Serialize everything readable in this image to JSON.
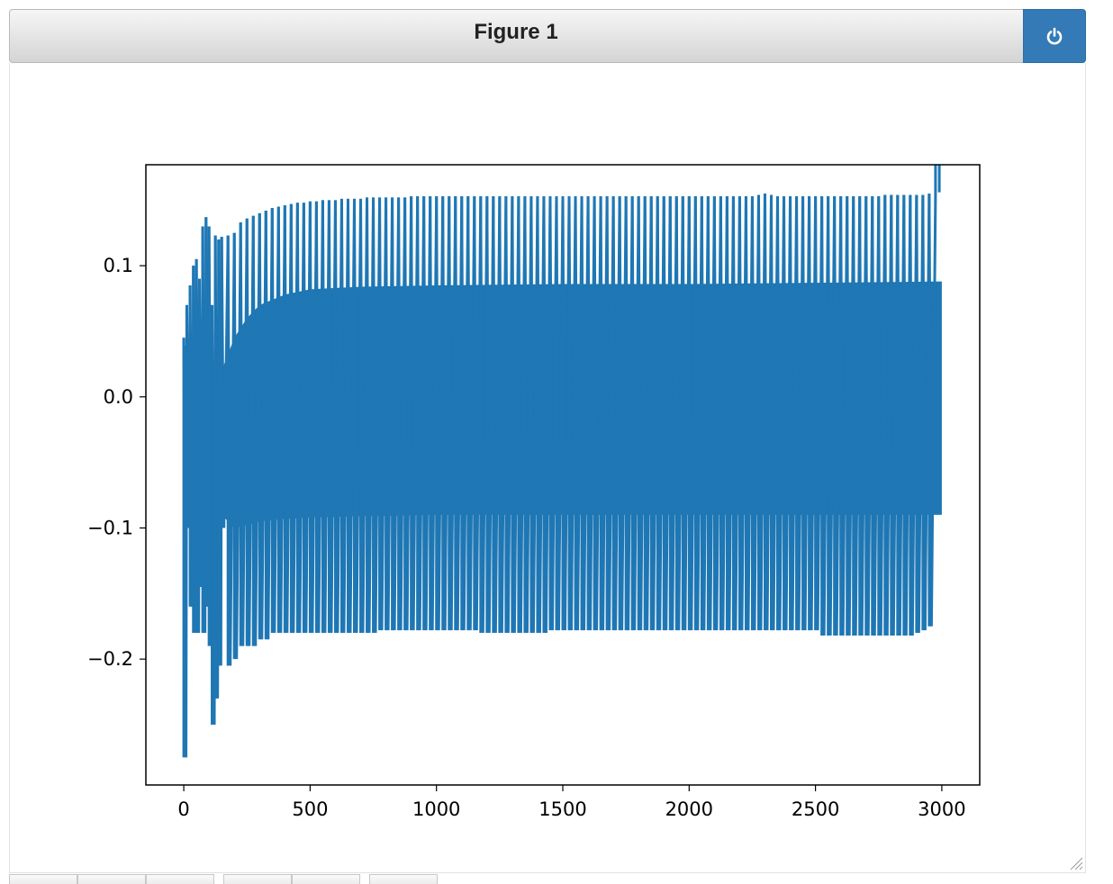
{
  "window": {
    "title": "Figure 1"
  },
  "toolbar": {
    "groups": [
      3,
      2,
      1
    ]
  },
  "colors": {
    "line": "#1f77b4",
    "power_button": "#337ab7"
  },
  "chart_data": {
    "type": "line",
    "title": "",
    "xlabel": "",
    "ylabel": "",
    "xlim": [
      -150,
      3150
    ],
    "ylim": [
      -0.296,
      0.177
    ],
    "xticks": [
      0,
      500,
      1000,
      1500,
      2000,
      2500,
      3000
    ],
    "xtick_labels": [
      "0",
      "500",
      "1000",
      "1500",
      "2000",
      "2500",
      "3000"
    ],
    "yticks": [
      -0.2,
      -0.1,
      0.0,
      0.1
    ],
    "ytick_labels": [
      "−0.2",
      "−0.1",
      "0.0",
      "0.1"
    ],
    "grid": false,
    "series": [
      {
        "description": "dense oscillating signal, 3000 samples",
        "spike_x": [
          0,
          12,
          25,
          38,
          50,
          62,
          75,
          88,
          100,
          112,
          125,
          138,
          150,
          175,
          200,
          225,
          250,
          275,
          300,
          325,
          350,
          375,
          400,
          425,
          450,
          475,
          500,
          525,
          550,
          575,
          600,
          625,
          650,
          675,
          700,
          725,
          750,
          775,
          800,
          825,
          850,
          875,
          900,
          925,
          950,
          975,
          1000,
          1025,
          1050,
          1075,
          1100,
          1125,
          1150,
          1175,
          1200,
          1225,
          1250,
          1275,
          1300,
          1325,
          1350,
          1375,
          1400,
          1425,
          1450,
          1475,
          1500,
          1525,
          1550,
          1575,
          1600,
          1625,
          1650,
          1675,
          1700,
          1725,
          1750,
          1775,
          1800,
          1825,
          1850,
          1875,
          1900,
          1925,
          1950,
          1975,
          2000,
          2025,
          2050,
          2075,
          2100,
          2125,
          2150,
          2175,
          2200,
          2225,
          2250,
          2275,
          2300,
          2325,
          2350,
          2375,
          2400,
          2425,
          2450,
          2475,
          2500,
          2525,
          2550,
          2575,
          2600,
          2625,
          2650,
          2675,
          2700,
          2725,
          2750,
          2775,
          2800,
          2825,
          2850,
          2875,
          2900,
          2925,
          2950,
          2975,
          2990
        ],
        "spike_high": [
          0.045,
          0.07,
          0.085,
          0.1,
          0.105,
          0.09,
          0.13,
          0.137,
          0.13,
          0.07,
          0.123,
          0.12,
          0.122,
          0.123,
          0.125,
          0.133,
          0.136,
          0.138,
          0.14,
          0.142,
          0.144,
          0.145,
          0.146,
          0.147,
          0.148,
          0.148,
          0.149,
          0.149,
          0.15,
          0.15,
          0.15,
          0.151,
          0.151,
          0.151,
          0.151,
          0.152,
          0.152,
          0.152,
          0.152,
          0.152,
          0.152,
          0.152,
          0.153,
          0.153,
          0.153,
          0.153,
          0.153,
          0.153,
          0.153,
          0.153,
          0.153,
          0.153,
          0.153,
          0.153,
          0.153,
          0.153,
          0.153,
          0.153,
          0.153,
          0.153,
          0.153,
          0.153,
          0.153,
          0.153,
          0.153,
          0.153,
          0.153,
          0.153,
          0.153,
          0.153,
          0.153,
          0.153,
          0.153,
          0.153,
          0.153,
          0.153,
          0.153,
          0.153,
          0.153,
          0.153,
          0.153,
          0.153,
          0.153,
          0.153,
          0.153,
          0.153,
          0.153,
          0.153,
          0.153,
          0.153,
          0.153,
          0.153,
          0.153,
          0.153,
          0.153,
          0.153,
          0.153,
          0.154,
          0.155,
          0.154,
          0.153,
          0.153,
          0.153,
          0.153,
          0.153,
          0.153,
          0.153,
          0.153,
          0.153,
          0.153,
          0.153,
          0.153,
          0.153,
          0.153,
          0.153,
          0.153,
          0.153,
          0.154,
          0.154,
          0.154,
          0.154,
          0.154,
          0.154,
          0.154,
          0.155,
          0.155,
          0.156
        ],
        "spike_low": [
          -0.275,
          -0.1,
          -0.16,
          -0.18,
          -0.18,
          -0.145,
          -0.18,
          -0.16,
          -0.19,
          -0.25,
          -0.23,
          -0.205,
          -0.1,
          -0.205,
          -0.2,
          -0.19,
          -0.19,
          -0.19,
          -0.185,
          -0.185,
          -0.18,
          -0.18,
          -0.18,
          -0.18,
          -0.18,
          -0.18,
          -0.18,
          -0.18,
          -0.18,
          -0.18,
          -0.18,
          -0.18,
          -0.18,
          -0.18,
          -0.18,
          -0.18,
          -0.18,
          -0.178,
          -0.178,
          -0.178,
          -0.178,
          -0.178,
          -0.178,
          -0.178,
          -0.178,
          -0.178,
          -0.178,
          -0.178,
          -0.178,
          -0.178,
          -0.178,
          -0.178,
          -0.178,
          -0.18,
          -0.18,
          -0.18,
          -0.18,
          -0.18,
          -0.18,
          -0.18,
          -0.18,
          -0.18,
          -0.18,
          -0.18,
          -0.178,
          -0.178,
          -0.178,
          -0.178,
          -0.178,
          -0.178,
          -0.178,
          -0.178,
          -0.178,
          -0.178,
          -0.178,
          -0.178,
          -0.178,
          -0.178,
          -0.178,
          -0.178,
          -0.178,
          -0.178,
          -0.178,
          -0.178,
          -0.178,
          -0.178,
          -0.178,
          -0.178,
          -0.178,
          -0.178,
          -0.178,
          -0.178,
          -0.178,
          -0.178,
          -0.178,
          -0.178,
          -0.178,
          -0.178,
          -0.178,
          -0.178,
          -0.178,
          -0.178,
          -0.178,
          -0.178,
          -0.178,
          -0.178,
          -0.178,
          -0.182,
          -0.182,
          -0.182,
          -0.182,
          -0.182,
          -0.182,
          -0.182,
          -0.182,
          -0.182,
          -0.182,
          -0.182,
          -0.182,
          -0.182,
          -0.182,
          -0.182,
          -0.18,
          -0.178,
          -0.175
        ],
        "band_upper_x": [
          0,
          50,
          100,
          150,
          200,
          250,
          300,
          400,
          500,
          700,
          1000,
          1500,
          2000,
          2500,
          3000
        ],
        "band_upper_y": [
          0.04,
          0.03,
          0.02,
          0.02,
          0.045,
          0.06,
          0.07,
          0.078,
          0.082,
          0.084,
          0.085,
          0.086,
          0.086,
          0.087,
          0.088
        ],
        "band_lower_x": [
          0,
          50,
          100,
          150,
          200,
          250,
          300,
          400,
          500,
          700,
          1000,
          1500,
          2000,
          2500,
          3000
        ],
        "band_lower_y": [
          -0.06,
          -0.05,
          -0.04,
          -0.09,
          -0.1,
          -0.098,
          -0.095,
          -0.093,
          -0.092,
          -0.091,
          -0.09,
          -0.09,
          -0.09,
          -0.09,
          -0.09
        ]
      }
    ]
  }
}
